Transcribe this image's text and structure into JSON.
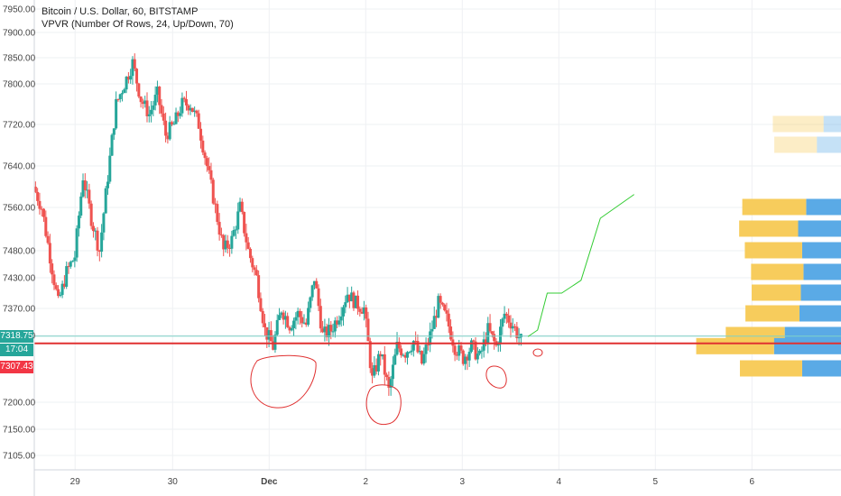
{
  "header": {
    "symbol_line": "Bitcoin / U.S. Dollar, 60, BITSTAMP",
    "indicator_line": "VPVR (Number Of Rows, 24, Up/Down, 70)"
  },
  "price_tags": {
    "current_price": "7318.75",
    "countdown": "17:04",
    "line_price": "7307.43",
    "current_color": "#26a69a",
    "line_color": "#f23645"
  },
  "colors": {
    "up": "#26a69a",
    "down": "#ef5350",
    "drawing": "#e03131",
    "projection": "#33cc33",
    "vp_up": "#5aaae6",
    "vp_down": "#f7cc5c"
  },
  "chart_data": {
    "type": "candlestick",
    "title": "Bitcoin / U.S. Dollar, 60, BITSTAMP",
    "y_ticks": [
      7950,
      7900,
      7850,
      7800,
      7720,
      7640,
      7560,
      7480,
      7430,
      7370,
      7320,
      7200,
      7150,
      7105
    ],
    "y_tick_labels": [
      "7950.00",
      "7900.00",
      "7850.00",
      "7800.00",
      "7720.00",
      "7640.00",
      "7560.00",
      "7480.00",
      "7430.00",
      "7370.00",
      "7320.00",
      "7200.00",
      "7150.00",
      "7105.00"
    ],
    "x_ticks": [
      "29",
      "30",
      "Dec",
      "2",
      "3",
      "4",
      "5",
      "6"
    ],
    "x_tick_days": [
      0.46,
      1.47,
      2.47,
      3.47,
      4.47,
      5.47,
      6.47,
      7.47
    ],
    "horizontal_line": 7307.43,
    "current_price": 7318.75,
    "candles_ohlc_hourly_anchor_closes": [
      7600,
      7560,
      7470,
      7380,
      7440,
      7470,
      7620,
      7540,
      7480,
      7620,
      7760,
      7800,
      7840,
      7770,
      7740,
      7780,
      7700,
      7720,
      7760,
      7760,
      7720,
      7640,
      7560,
      7480,
      7500,
      7560,
      7480,
      7430,
      7330,
      7300,
      7370,
      7340,
      7360,
      7340,
      7430,
      7320,
      7330,
      7360,
      7400,
      7380,
      7370,
      7240,
      7290,
      7220,
      7300,
      7290,
      7310,
      7270,
      7320,
      7380,
      7350,
      7300,
      7280,
      7300,
      7280,
      7330,
      7300,
      7360,
      7340,
      7310
    ],
    "projection_points": [
      [
        5.1,
        7318
      ],
      [
        5.2,
        7330
      ],
      [
        5.3,
        7400
      ],
      [
        5.45,
        7400
      ],
      [
        5.65,
        7425
      ],
      [
        5.85,
        7540
      ],
      [
        6.2,
        7585
      ]
    ],
    "volume_profile_rows": [
      {
        "price": 7720,
        "up": 0.26,
        "down": 0.62
      },
      {
        "price": 7680,
        "up": 0.36,
        "down": 0.52
      },
      {
        "price": 7560,
        "up": 0.52,
        "down": 0.78
      },
      {
        "price": 7520,
        "up": 0.64,
        "down": 0.72
      },
      {
        "price": 7480,
        "up": 0.58,
        "down": 0.7
      },
      {
        "price": 7440,
        "up": 0.56,
        "down": 0.64
      },
      {
        "price": 7400,
        "up": 0.6,
        "down": 0.6
      },
      {
        "price": 7360,
        "up": 0.62,
        "down": 0.66
      },
      {
        "price": 7320,
        "up": 0.84,
        "down": 0.72
      },
      {
        "price": 7300,
        "up": 1.0,
        "down": 0.95
      },
      {
        "price": 7260,
        "up": 0.58,
        "down": 0.76
      }
    ]
  }
}
